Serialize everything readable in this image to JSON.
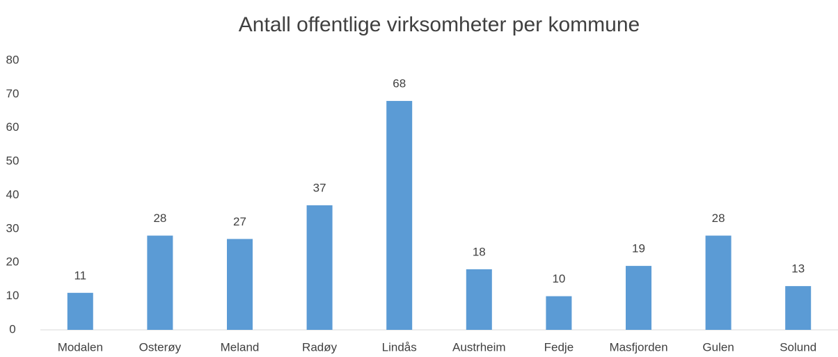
{
  "chart_data": {
    "type": "bar",
    "title": "Antall offentlige virksomheter per kommune",
    "categories": [
      "Modalen",
      "Osterøy",
      "Meland",
      "Radøy",
      "Lindås",
      "Austrheim",
      "Fedje",
      "Masfjorden",
      "Gulen",
      "Solund"
    ],
    "values": [
      11,
      28,
      27,
      37,
      68,
      18,
      10,
      19,
      28,
      13
    ],
    "color": "#5b9bd5",
    "ylim": [
      0,
      80
    ],
    "yticks": [
      0,
      10,
      20,
      30,
      40,
      50,
      60,
      70,
      80
    ],
    "grid": false,
    "data_labels": true
  }
}
